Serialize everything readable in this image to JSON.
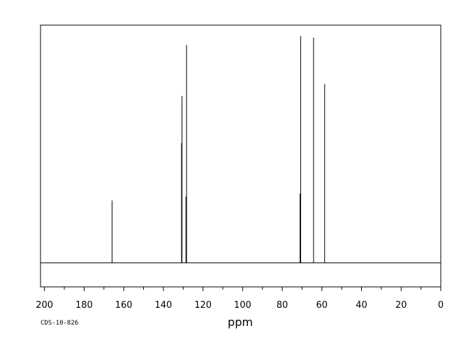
{
  "chart_data": {
    "type": "line",
    "title": "",
    "xlabel": "ppm",
    "ylabel": "",
    "code": "CDS-10-826",
    "xlim": [
      202,
      0
    ],
    "x_tick_values": [
      200,
      180,
      160,
      140,
      120,
      100,
      80,
      60,
      40,
      20,
      0
    ],
    "x_tick_labels": [
      "200",
      "180",
      "160",
      "140",
      "120",
      "100",
      "80",
      "60",
      "40",
      "20",
      "0"
    ],
    "x_minor_step": 10,
    "grid": false,
    "baseline": 0,
    "ylim": [
      -0.11,
      1.09
    ],
    "series": [
      {
        "peaks": [
          {
            "ppm": 165.9,
            "intensity": 0.286
          },
          {
            "ppm": 130.8,
            "intensity": 0.549
          },
          {
            "ppm": 130.6,
            "intensity": 0.765
          },
          {
            "ppm": 128.6,
            "intensity": 0.304
          },
          {
            "ppm": 128.3,
            "intensity": 0.999
          },
          {
            "ppm": 71.0,
            "intensity": 0.318
          },
          {
            "ppm": 70.7,
            "intensity": 1.04
          },
          {
            "ppm": 64.2,
            "intensity": 1.033
          },
          {
            "ppm": 58.6,
            "intensity": 0.82
          }
        ]
      }
    ]
  }
}
